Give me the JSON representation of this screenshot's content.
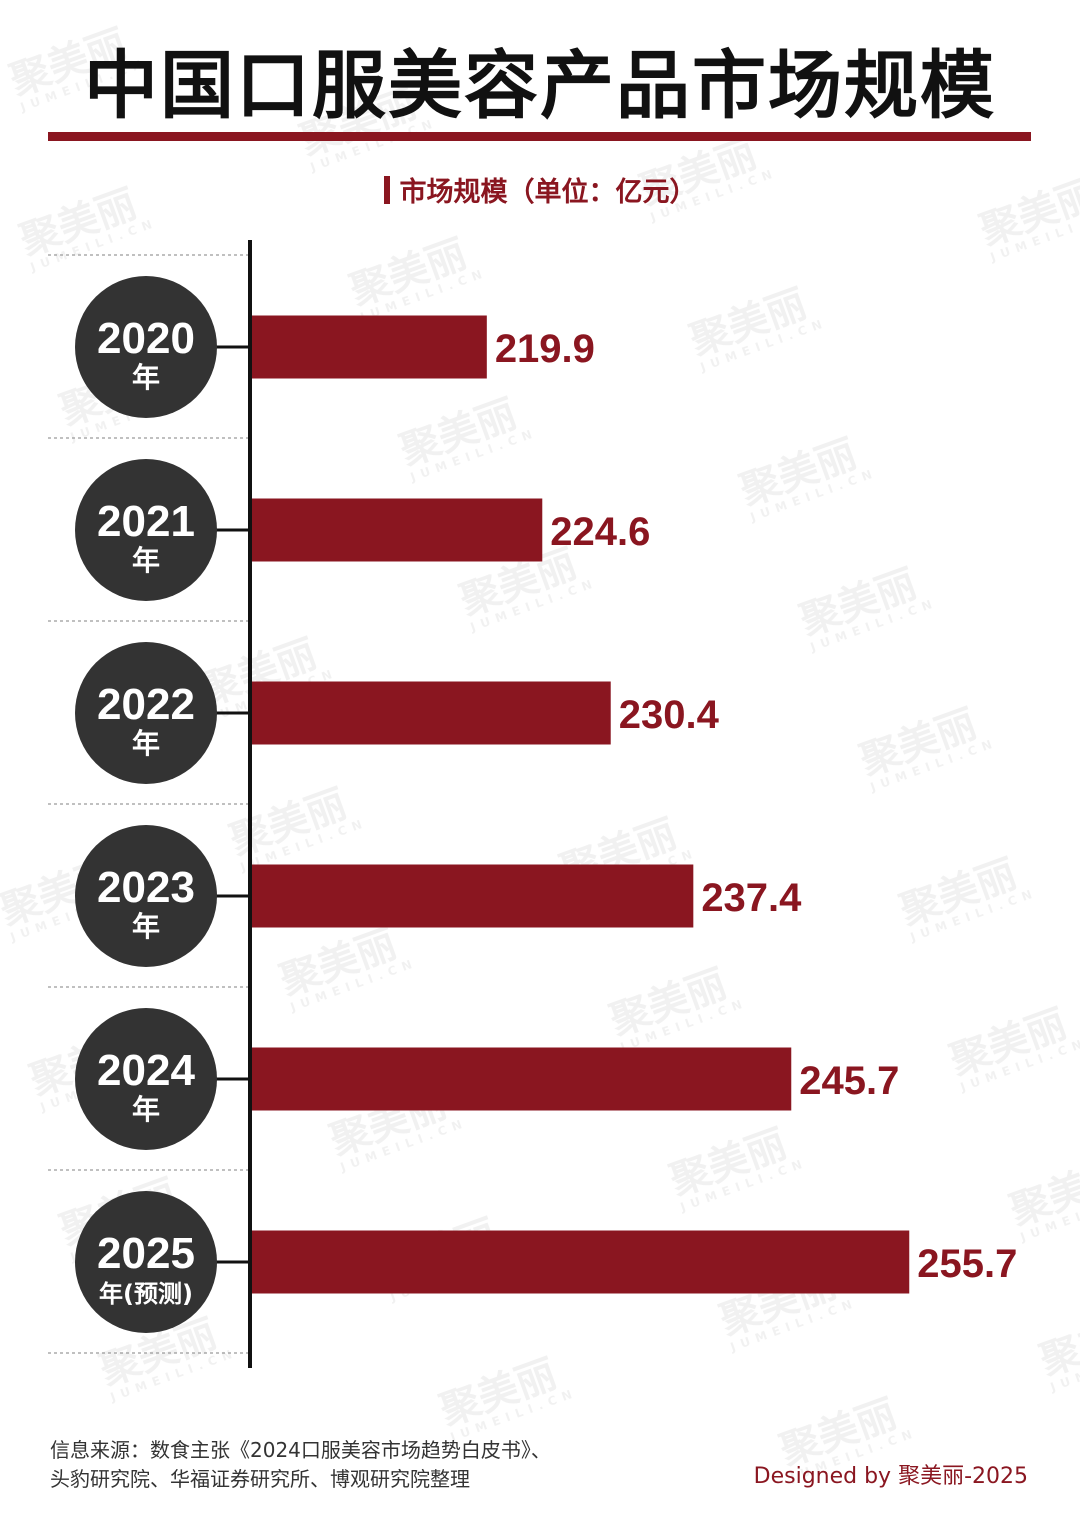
{
  "title": "中国口服美容产品市场规模",
  "unit_label": "市场规模（单位：亿元）",
  "watermark": {
    "text": "聚美丽",
    "sub": "JUMEILI.CN"
  },
  "colors": {
    "accent": "#8a1620",
    "circle": "#333333",
    "axis": "#111111",
    "text": "#111111"
  },
  "chart_data": {
    "type": "bar",
    "orientation": "horizontal",
    "categories": [
      "2020",
      "2021",
      "2022",
      "2023",
      "2024",
      "2025"
    ],
    "category_suffix": [
      "年",
      "年",
      "年",
      "年",
      "年",
      "年(预测)"
    ],
    "values": [
      219.9,
      224.6,
      230.4,
      237.4,
      245.7,
      255.7
    ],
    "value_labels": [
      "219.9",
      "224.6",
      "230.4",
      "237.4",
      "245.7",
      "255.7"
    ],
    "title": "中国口服美容产品市场规模",
    "ylabel": "市场规模（单位：亿元）",
    "grid": false,
    "legend": "none"
  },
  "footer": {
    "source_line1": "信息来源：数食主张《2024口服美容市场趋势白皮书》、",
    "source_line2": "头豹研究院、华福证券研究所、博观研究院整理",
    "credit": "Designed by 聚美丽-2025"
  }
}
